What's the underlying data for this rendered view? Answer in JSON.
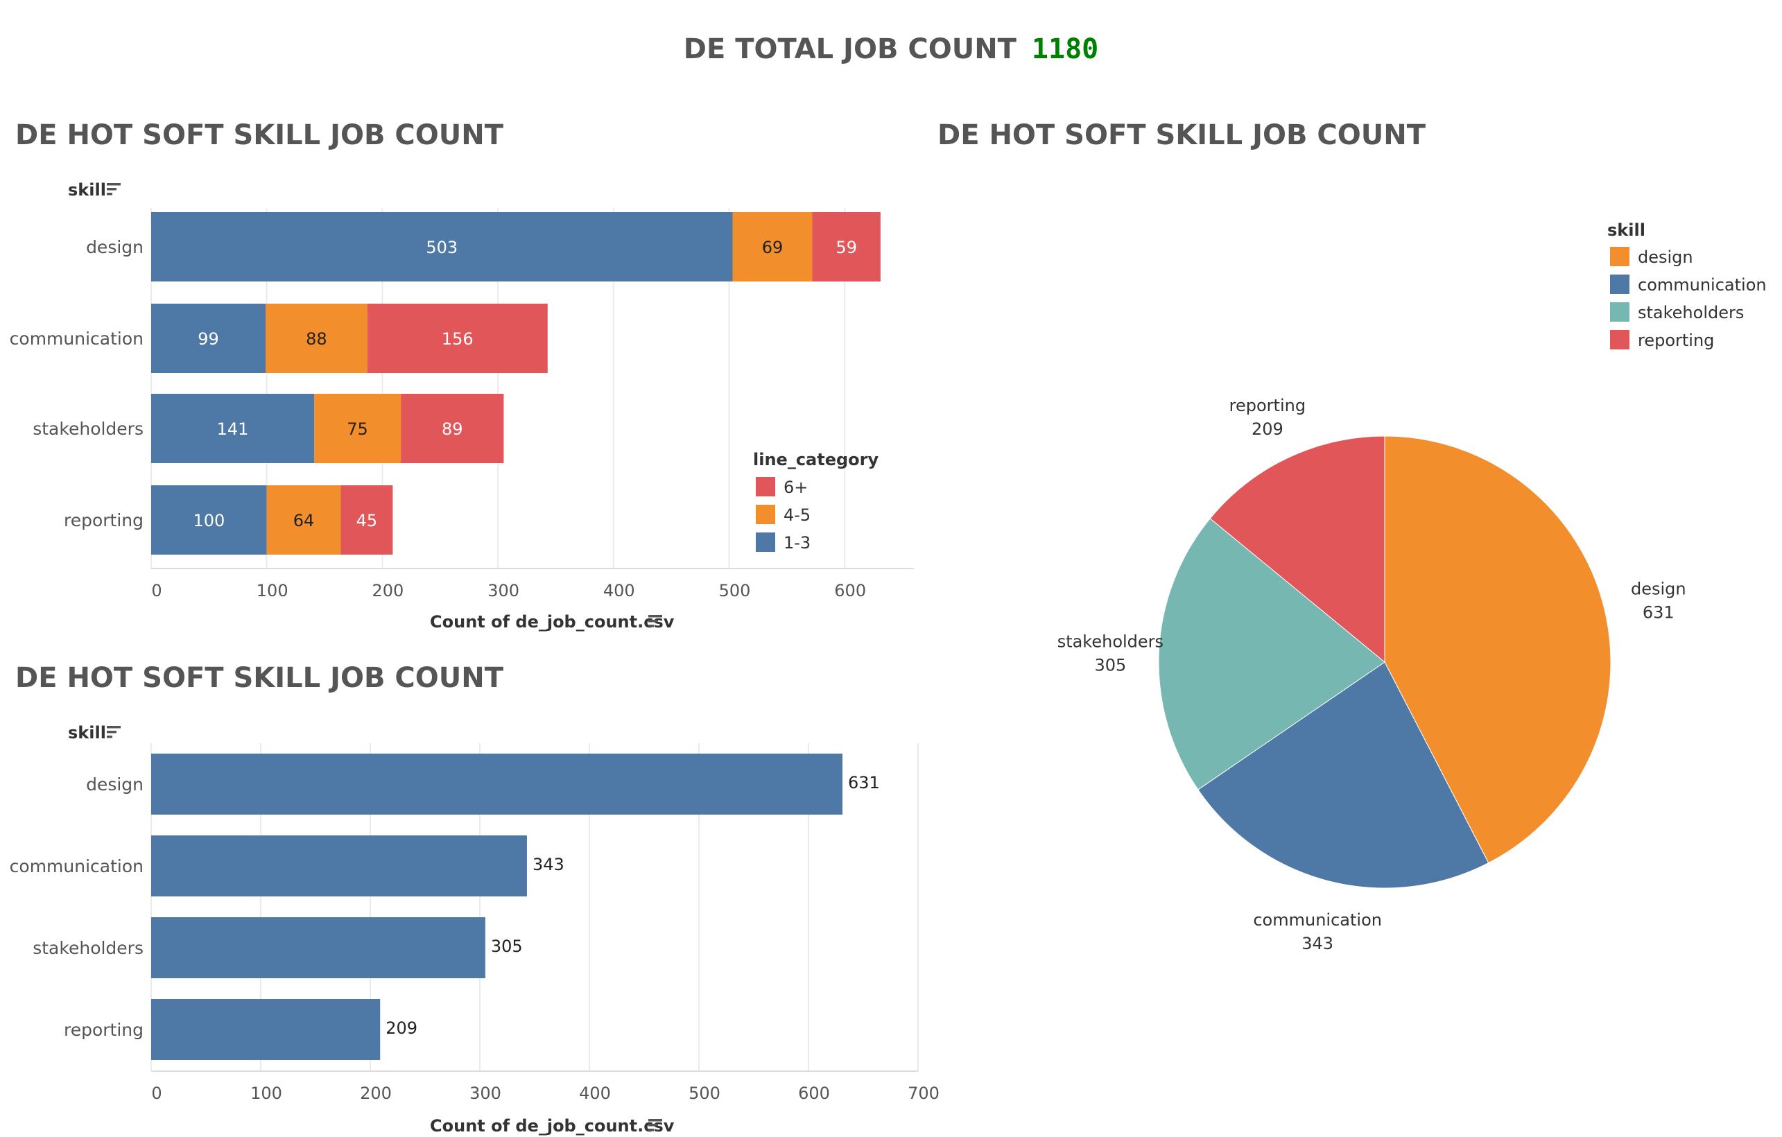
{
  "page_title": {
    "label": "DE TOTAL JOB COUNT",
    "value": "1180"
  },
  "colors": {
    "blue": "#4E79A7",
    "orange": "#F28E2B",
    "red": "#E15759",
    "teal": "#76B7B2",
    "title": "#555555",
    "value_green": "#008000",
    "grid": "#ebebeb"
  },
  "chart_data": [
    {
      "type": "bar",
      "orientation": "horizontal",
      "stacked": true,
      "title": "DE HOT SOFT SKILL JOB COUNT",
      "ylabel": "skill",
      "xlabel": "Count of de_job_count.csv",
      "categories": [
        "design",
        "communication",
        "stakeholders",
        "reporting"
      ],
      "series": [
        {
          "name": "1-3",
          "color": "#4E79A7",
          "label_color": "#ffffff",
          "values": [
            503,
            99,
            141,
            100
          ]
        },
        {
          "name": "4-5",
          "color": "#F28E2B",
          "label_color": "#222222",
          "values": [
            69,
            88,
            75,
            64
          ]
        },
        {
          "name": "6+",
          "color": "#E15759",
          "label_color": "#ffffff",
          "values": [
            59,
            156,
            89,
            45
          ]
        }
      ],
      "xlim": [
        0,
        660
      ],
      "xticks": [
        0,
        100,
        200,
        300,
        400,
        500,
        600
      ],
      "grid": true,
      "legend": {
        "title": "line_category",
        "entries": [
          "6+",
          "4-5",
          "1-3"
        ],
        "position": "right"
      }
    },
    {
      "type": "pie",
      "title": "DE HOT SOFT SKILL JOB COUNT",
      "slices": [
        {
          "label": "design",
          "value": 631,
          "color": "#F28E2B"
        },
        {
          "label": "communication",
          "value": 343,
          "color": "#4E79A7"
        },
        {
          "label": "stakeholders",
          "value": 305,
          "color": "#76B7B2"
        },
        {
          "label": "reporting",
          "value": 209,
          "color": "#E15759"
        }
      ],
      "legend": {
        "title": "skill",
        "entries": [
          "design",
          "communication",
          "stakeholders",
          "reporting"
        ],
        "position": "top-right"
      }
    },
    {
      "type": "bar",
      "orientation": "horizontal",
      "title": "DE HOT SOFT SKILL JOB COUNT",
      "ylabel": "skill",
      "xlabel": "Count of de_job_count.csv",
      "categories": [
        "design",
        "communication",
        "stakeholders",
        "reporting"
      ],
      "values": [
        631,
        343,
        305,
        209
      ],
      "color": "#4E79A7",
      "xlim": [
        0,
        700
      ],
      "xticks": [
        0,
        100,
        200,
        300,
        400,
        500,
        600,
        700
      ],
      "grid": true
    }
  ]
}
